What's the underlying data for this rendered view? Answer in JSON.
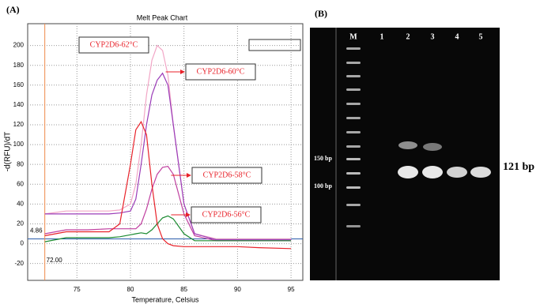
{
  "panel_a_label": "(A)",
  "panel_b_label": "(B)",
  "chart_data": {
    "type": "line",
    "title": "Melt Peak Chart",
    "x_label": "Temperature, Celsius",
    "y_label": "-d(RFU)/dT",
    "x": [
      72,
      74,
      76,
      78,
      79,
      80,
      80.5,
      81,
      81.5,
      82,
      82.5,
      83,
      83.5,
      84,
      85,
      86,
      88,
      90,
      92,
      95
    ],
    "series": [
      {
        "name": "CYP2D6-62°C",
        "color": "#f2a6c6",
        "values": [
          30,
          33,
          33,
          33,
          34,
          40,
          60,
          100,
          150,
          185,
          200,
          195,
          170,
          120,
          40,
          10,
          5,
          5,
          5,
          5
        ]
      },
      {
        "name": "CYP2D6-60°C",
        "color": "#9b3cb8",
        "values": [
          30,
          30,
          30,
          30,
          31,
          33,
          45,
          80,
          120,
          150,
          165,
          172,
          160,
          120,
          40,
          10,
          4,
          4,
          4,
          4
        ]
      },
      {
        "name": "CYP2D6-58°C",
        "color": "#c040a0",
        "values": [
          10,
          14,
          14,
          15,
          15,
          15,
          15,
          20,
          35,
          55,
          70,
          77,
          78,
          70,
          30,
          8,
          3,
          3,
          3,
          3
        ]
      },
      {
        "name": "CYP2D6-56°C",
        "color": "#1a8a30",
        "values": [
          2,
          6,
          6,
          6,
          7,
          9,
          10,
          11,
          10,
          14,
          20,
          26,
          28,
          25,
          10,
          3,
          3,
          3,
          3,
          3
        ]
      },
      {
        "color": "#e8222a",
        "values": [
          8,
          12,
          12,
          12,
          20,
          80,
          115,
          123,
          110,
          60,
          20,
          5,
          0,
          -2,
          -3,
          -3,
          -3,
          -3,
          -4,
          -5
        ]
      }
    ],
    "xlim": [
      70.4,
      96.1
    ],
    "ylim": [
      -37,
      222
    ],
    "xticks": [
      75,
      80,
      85,
      90,
      95
    ],
    "yticks": [
      -20,
      0,
      20,
      40,
      60,
      80,
      100,
      120,
      140,
      160,
      180,
      200
    ],
    "grid": true,
    "threshold": 4.86,
    "threshold_color": "#2a5caa",
    "start_line": {
      "value": 72,
      "label": "72.00"
    },
    "start_line_color": "#f08a4a"
  },
  "gel": {
    "lanes": [
      "M",
      "1",
      "2",
      "3",
      "4",
      "5"
    ],
    "size_labels": [
      "150 bp",
      "100 bp"
    ],
    "product_label": "121 bp"
  }
}
